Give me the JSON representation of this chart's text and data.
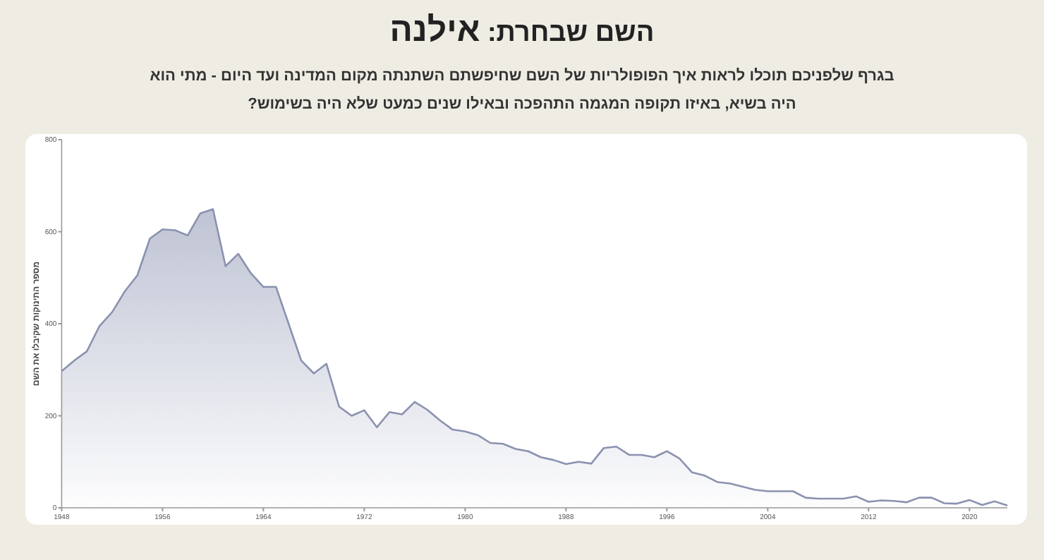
{
  "chart_data": {
    "type": "area",
    "title": "השם שבחרת: **אילנה**",
    "subtitle": "בגרף שלפניכם תוכלו לראות איך הפופולריות של השם שחיפשתם השתנתה מקום המדינה ועד היום - מתי הוא היה בשיא, באיזו תקופה המגמה התהפכה ובאילו שנים כמעט שלא היה בשימוש?",
    "ylabel": "מספר התינוקות שקיבלו את השם",
    "x": [
      1948,
      1949,
      1950,
      1951,
      1952,
      1953,
      1954,
      1955,
      1956,
      1957,
      1958,
      1959,
      1960,
      1961,
      1962,
      1963,
      1964,
      1965,
      1966,
      1967,
      1968,
      1969,
      1970,
      1971,
      1972,
      1973,
      1974,
      1975,
      1976,
      1977,
      1978,
      1979,
      1980,
      1981,
      1982,
      1983,
      1984,
      1985,
      1986,
      1987,
      1988,
      1989,
      1990,
      1991,
      1992,
      1993,
      1994,
      1995,
      1996,
      1997,
      1998,
      1999,
      2000,
      2001,
      2002,
      2003,
      2004,
      2005,
      2006,
      2007,
      2008,
      2009,
      2010,
      2011,
      2012,
      2013,
      2014,
      2015,
      2016,
      2017,
      2018,
      2019,
      2020,
      2021,
      2022,
      2023
    ],
    "series": [
      {
        "color": "#8a92b0",
        "values": [
          297,
          320,
          340,
          395,
          425,
          470,
          505,
          585,
          605,
          603,
          592,
          640,
          649,
          525,
          552,
          510,
          480,
          480,
          400,
          320,
          292,
          313,
          220,
          200,
          212,
          175,
          208,
          203,
          230,
          213,
          190,
          170,
          166,
          158,
          141,
          139,
          128,
          123,
          110,
          104,
          95,
          100,
          96,
          130,
          133,
          115,
          115,
          110,
          123,
          107,
          77,
          70,
          56,
          53,
          46,
          39,
          36,
          36,
          36,
          22,
          20,
          20,
          20,
          25,
          13,
          16,
          15,
          12,
          22,
          22,
          10,
          9,
          17,
          6,
          14,
          5
        ]
      }
    ],
    "marker": "none",
    "xlim": [
      1948,
      2023
    ],
    "ylim": [
      0,
      800
    ],
    "xticks": [
      1948,
      1956,
      1964,
      1972,
      1980,
      1988,
      1996,
      2004,
      2012,
      2020
    ],
    "yticks": [
      0,
      200,
      400,
      600,
      800
    ]
  }
}
